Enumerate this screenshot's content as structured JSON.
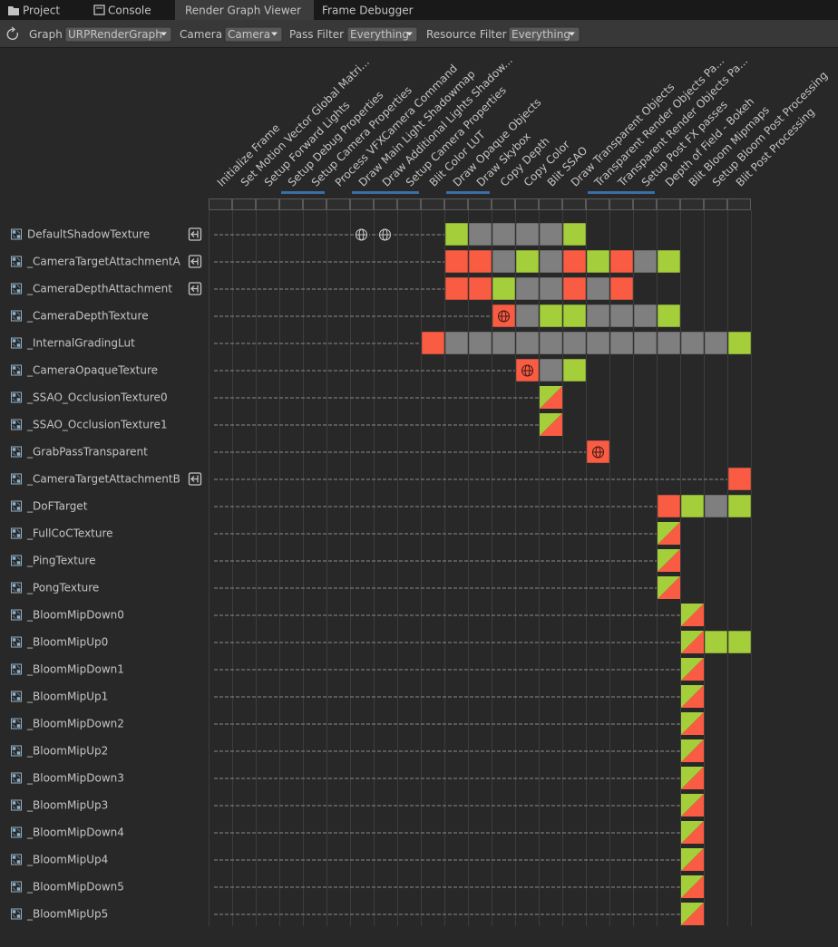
{
  "tabs": [
    "Project",
    "Console",
    "Render Graph Viewer",
    "Frame Debugger"
  ],
  "active_tab": 2,
  "toolbar": {
    "graph_label": "Graph",
    "graph_value": "URPRenderGraph",
    "camera_label": "Camera",
    "camera_value": "Camera",
    "pass_filter_label": "Pass Filter",
    "pass_filter_value": "Everything",
    "resource_filter_label": "Resource Filter",
    "resource_filter_value": "Everything"
  },
  "passes": [
    "Initialize Frame",
    "Set Motion Vector Global Matri...",
    "Setup Forward Lights",
    "Setup Debug Properties",
    "Setup Camera Properties",
    "Process VFXCamera Command",
    "Draw Main Light Shadowmap",
    "Draw Additional Lights Shadow...",
    "Setup Camera Properties",
    "Blit Color LUT",
    "Draw Opaque Objects",
    "Draw Skybox",
    "Copy Depth",
    "Copy Color",
    "Blit SSAO",
    "Draw Transparent Objects",
    "Transparent Render Objects Pa...",
    "Transparent Render Objects Pa...",
    "Setup Post FX passes",
    "Depth of Field - Bokeh",
    "Blit Bloom Mipmaps",
    "Setup Bloom Post Processing",
    "Blit Post Processing"
  ],
  "merged_pass_groups": [
    [
      3,
      4
    ],
    [
      6,
      8
    ],
    [
      10,
      11
    ],
    [
      16,
      18
    ]
  ],
  "resources": [
    {
      "name": "DefaultShadowTexture",
      "imported": true,
      "usage": {
        "6": "global",
        "7": "global",
        "10": "read",
        "11": "unused",
        "12": "unused",
        "13": "unused",
        "14": "unused",
        "15": "read"
      }
    },
    {
      "name": "_CameraTargetAttachmentA",
      "imported": true,
      "usage": {
        "10": "write",
        "11": "write",
        "12": "unused",
        "13": "read",
        "14": "unused",
        "15": "write",
        "16": "read",
        "17": "write",
        "18": "unused",
        "19": "read"
      }
    },
    {
      "name": "_CameraDepthAttachment",
      "imported": true,
      "usage": {
        "10": "write",
        "11": "write",
        "12": "read",
        "13": "unused",
        "14": "unused",
        "15": "write",
        "16": "unused",
        "17": "write"
      }
    },
    {
      "name": "_CameraDepthTexture",
      "imported": false,
      "usage": {
        "12": "write-global",
        "13": "unused",
        "14": "read",
        "15": "read",
        "16": "unused",
        "17": "unused",
        "18": "unused",
        "19": "read"
      }
    },
    {
      "name": "_InternalGradingLut",
      "imported": false,
      "usage": {
        "9": "write",
        "10": "unused",
        "11": "unused",
        "12": "unused",
        "13": "unused",
        "14": "unused",
        "15": "unused",
        "16": "unused",
        "17": "unused",
        "18": "unused",
        "19": "unused",
        "20": "unused",
        "21": "unused",
        "22": "read"
      }
    },
    {
      "name": "_CameraOpaqueTexture",
      "imported": false,
      "usage": {
        "13": "write-global",
        "14": "unused",
        "15": "read"
      }
    },
    {
      "name": "_SSAO_OcclusionTexture0",
      "imported": false,
      "usage": {
        "14": "write-read"
      }
    },
    {
      "name": "_SSAO_OcclusionTexture1",
      "imported": false,
      "usage": {
        "14": "write-read"
      }
    },
    {
      "name": "_GrabPassTransparent",
      "imported": false,
      "usage": {
        "16": "write-global"
      }
    },
    {
      "name": "_CameraTargetAttachmentB",
      "imported": true,
      "usage": {
        "22": "write"
      }
    },
    {
      "name": "_DoFTarget",
      "imported": false,
      "usage": {
        "19": "write",
        "20": "read",
        "21": "unused",
        "22": "read"
      }
    },
    {
      "name": "_FullCoCTexture",
      "imported": false,
      "usage": {
        "19": "write-read"
      }
    },
    {
      "name": "_PingTexture",
      "imported": false,
      "usage": {
        "19": "write-read"
      }
    },
    {
      "name": "_PongTexture",
      "imported": false,
      "usage": {
        "19": "write-read"
      }
    },
    {
      "name": "_BloomMipDown0",
      "imported": false,
      "usage": {
        "20": "write-read"
      }
    },
    {
      "name": "_BloomMipUp0",
      "imported": false,
      "usage": {
        "20": "write-read",
        "21": "read",
        "22": "read"
      }
    },
    {
      "name": "_BloomMipDown1",
      "imported": false,
      "usage": {
        "20": "write-read"
      }
    },
    {
      "name": "_BloomMipUp1",
      "imported": false,
      "usage": {
        "20": "write-read"
      }
    },
    {
      "name": "_BloomMipDown2",
      "imported": false,
      "usage": {
        "20": "write-read"
      }
    },
    {
      "name": "_BloomMipUp2",
      "imported": false,
      "usage": {
        "20": "write-read"
      }
    },
    {
      "name": "_BloomMipDown3",
      "imported": false,
      "usage": {
        "20": "write-read"
      }
    },
    {
      "name": "_BloomMipUp3",
      "imported": false,
      "usage": {
        "20": "write-read"
      }
    },
    {
      "name": "_BloomMipDown4",
      "imported": false,
      "usage": {
        "20": "write-read"
      }
    },
    {
      "name": "_BloomMipUp4",
      "imported": false,
      "usage": {
        "20": "write-read"
      }
    },
    {
      "name": "_BloomMipDown5",
      "imported": false,
      "usage": {
        "20": "write-read"
      }
    },
    {
      "name": "_BloomMipUp5",
      "imported": false,
      "usage": {
        "20": "write-read"
      }
    }
  ],
  "colors": {
    "write": "#fa5c43",
    "read": "#a4cf3a",
    "unused": "#7f7f7f"
  }
}
